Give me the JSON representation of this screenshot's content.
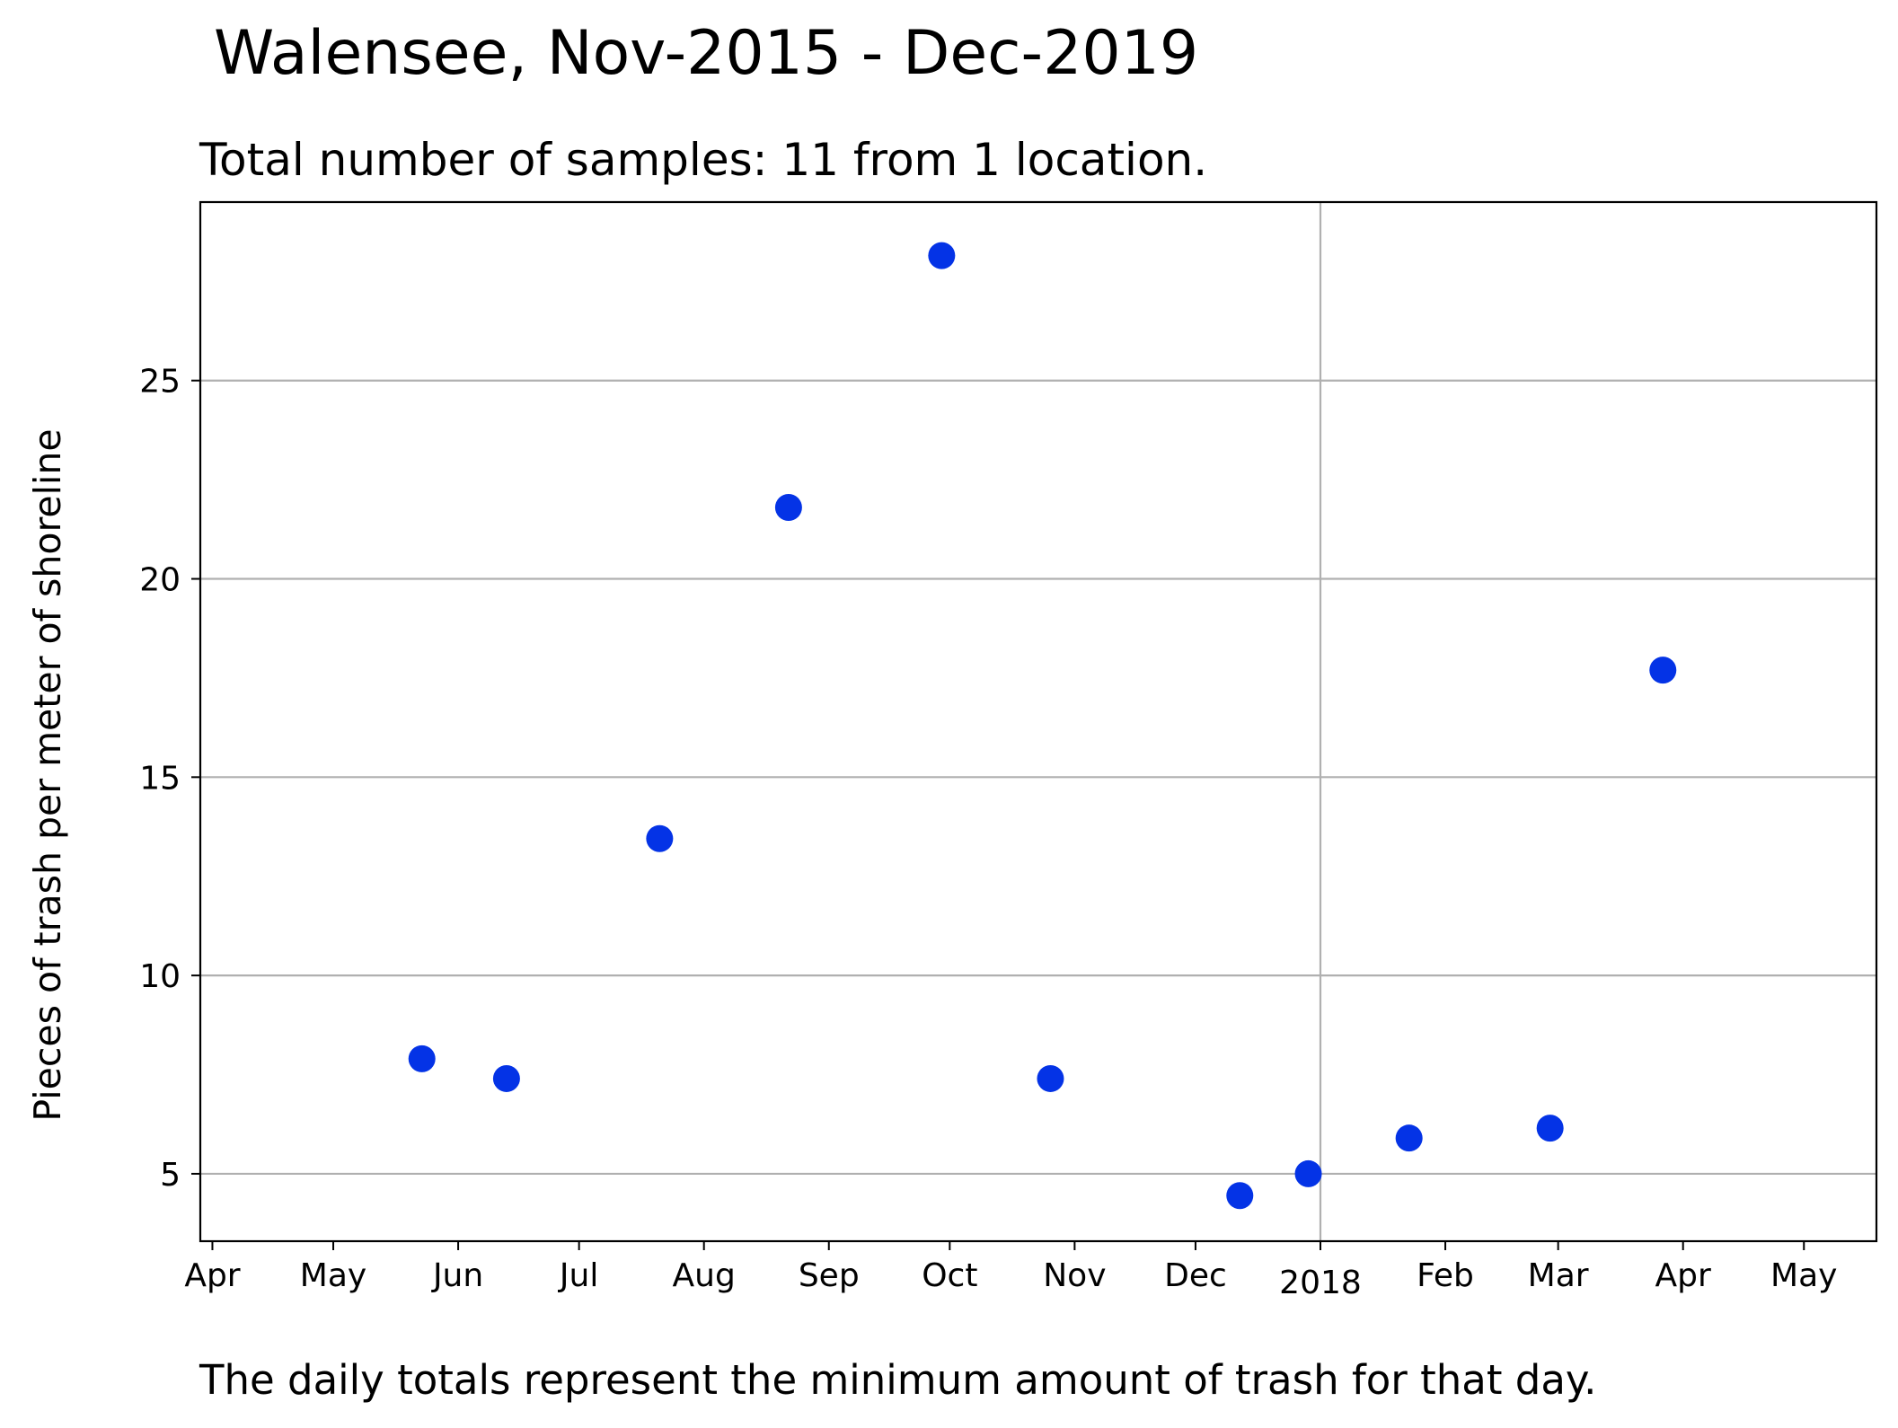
{
  "chart_data": {
    "type": "scatter",
    "title": "Walensee, Nov-2015 - Dec-2019",
    "subtitle": "Total number of samples: 11 from 1 location.",
    "caption": "The daily totals represent the minimum amount of trash for that day.",
    "xlabel": "",
    "ylabel": "Pieces of trash per meter of shoreline",
    "xlim": [
      "2017-03-29",
      "2018-05-19"
    ],
    "ylim": [
      3.3,
      29.5
    ],
    "x_ticks": [
      {
        "date": "2017-04-01",
        "label": "Apr"
      },
      {
        "date": "2017-05-01",
        "label": "May"
      },
      {
        "date": "2017-06-01",
        "label": "Jun"
      },
      {
        "date": "2017-07-01",
        "label": "Jul"
      },
      {
        "date": "2017-08-01",
        "label": "Aug"
      },
      {
        "date": "2017-09-01",
        "label": "Sep"
      },
      {
        "date": "2017-10-01",
        "label": "Oct"
      },
      {
        "date": "2017-11-01",
        "label": "Nov"
      },
      {
        "date": "2017-12-01",
        "label": "Dec"
      },
      {
        "date": "2018-01-01",
        "label": "2018"
      },
      {
        "date": "2018-02-01",
        "label": "Feb"
      },
      {
        "date": "2018-03-01",
        "label": "Mar"
      },
      {
        "date": "2018-04-01",
        "label": "Apr"
      },
      {
        "date": "2018-05-01",
        "label": "May"
      }
    ],
    "y_ticks": [
      5,
      10,
      15,
      20,
      25
    ],
    "grid": {
      "horizontal": true,
      "vertical_at": [
        "2018-01-01"
      ]
    },
    "marker_color": "#0433e6",
    "points": [
      {
        "date": "2017-05-23",
        "value": 7.9
      },
      {
        "date": "2017-06-13",
        "value": 7.4
      },
      {
        "date": "2017-07-21",
        "value": 13.45
      },
      {
        "date": "2017-08-22",
        "value": 21.8
      },
      {
        "date": "2017-09-29",
        "value": 28.15
      },
      {
        "date": "2017-10-26",
        "value": 7.4
      },
      {
        "date": "2017-12-12",
        "value": 4.45
      },
      {
        "date": "2017-12-29",
        "value": 5.0
      },
      {
        "date": "2018-01-23",
        "value": 5.9
      },
      {
        "date": "2018-02-27",
        "value": 6.15
      },
      {
        "date": "2018-03-27",
        "value": 17.7
      }
    ]
  }
}
